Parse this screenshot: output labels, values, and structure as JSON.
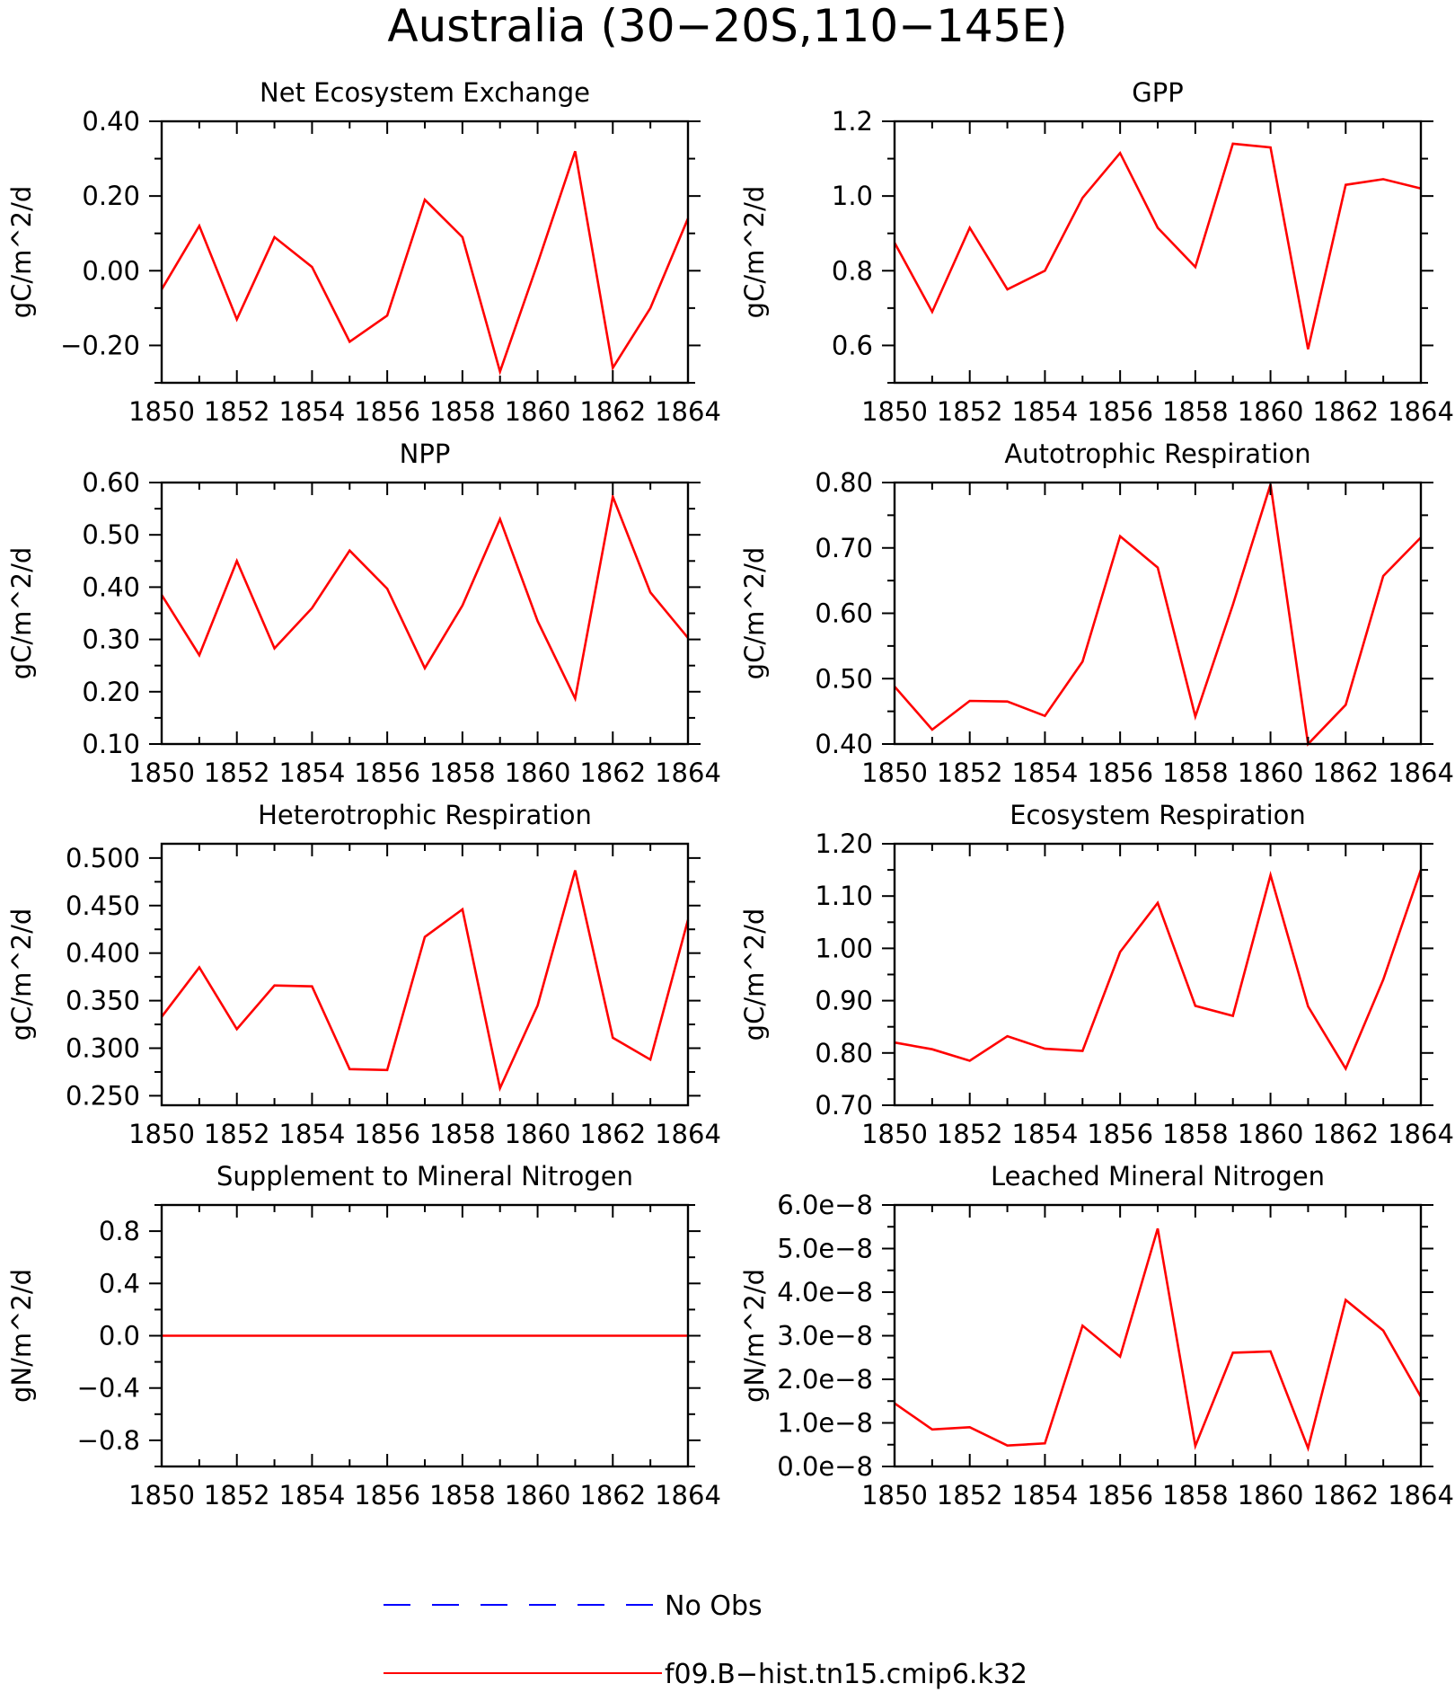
{
  "figure": {
    "title": "Australia (30−20S,110−145E)"
  },
  "colors": {
    "model": "#ff0000",
    "obs": "#0000ff",
    "axes": "#000000"
  },
  "legend": {
    "items": [
      {
        "label": "No Obs",
        "style": "dashed",
        "color": "#0000ff"
      },
      {
        "label": "f09.B−hist.tn15.cmip6.k32",
        "style": "solid",
        "color": "#ff0000"
      }
    ]
  },
  "chart_data": [
    {
      "type": "line",
      "title": "Net Ecosystem Exchange",
      "ylabel": "gC/m^2/d",
      "xlabel": "",
      "xlim": [
        1850,
        1864
      ],
      "ylim": [
        -0.3,
        0.4
      ],
      "xticks": [
        1850,
        1852,
        1854,
        1856,
        1858,
        1860,
        1862,
        1864
      ],
      "yticks": [
        -0.2,
        0.0,
        0.2,
        0.4
      ],
      "ytick_labels": [
        "−0.20",
        "0.00",
        "0.20",
        "0.40"
      ],
      "x": [
        1850,
        1851,
        1852,
        1853,
        1854,
        1855,
        1856,
        1857,
        1858,
        1859,
        1860,
        1861,
        1862,
        1863,
        1864
      ],
      "series": [
        {
          "name": "f09.B−hist.tn15.cmip6.k32",
          "values": [
            -0.05,
            0.12,
            -0.13,
            0.09,
            0.01,
            -0.19,
            -0.12,
            0.19,
            0.09,
            -0.27,
            0.02,
            0.32,
            -0.26,
            -0.1,
            0.14
          ]
        }
      ]
    },
    {
      "type": "line",
      "title": "GPP",
      "ylabel": "gC/m^2/d",
      "xlabel": "",
      "xlim": [
        1850,
        1864
      ],
      "ylim": [
        0.5,
        1.2
      ],
      "xticks": [
        1850,
        1852,
        1854,
        1856,
        1858,
        1860,
        1862,
        1864
      ],
      "yticks": [
        0.6,
        0.8,
        1.0,
        1.2
      ],
      "ytick_labels": [
        "0.6",
        "0.8",
        "1.0",
        "1.2"
      ],
      "x": [
        1850,
        1851,
        1852,
        1853,
        1854,
        1855,
        1856,
        1857,
        1858,
        1859,
        1860,
        1861,
        1862,
        1863,
        1864
      ],
      "series": [
        {
          "name": "f09.B−hist.tn15.cmip6.k32",
          "values": [
            0.875,
            0.69,
            0.915,
            0.75,
            0.8,
            0.995,
            1.115,
            0.915,
            0.81,
            1.14,
            1.13,
            0.59,
            1.03,
            1.045,
            1.02
          ]
        }
      ]
    },
    {
      "type": "line",
      "title": "NPP",
      "ylabel": "gC/m^2/d",
      "xlabel": "",
      "xlim": [
        1850,
        1864
      ],
      "ylim": [
        0.1,
        0.6
      ],
      "xticks": [
        1850,
        1852,
        1854,
        1856,
        1858,
        1860,
        1862,
        1864
      ],
      "yticks": [
        0.1,
        0.2,
        0.3,
        0.4,
        0.5,
        0.6
      ],
      "ytick_labels": [
        "0.10",
        "0.20",
        "0.30",
        "0.40",
        "0.50",
        "0.60"
      ],
      "x": [
        1850,
        1851,
        1852,
        1853,
        1854,
        1855,
        1856,
        1857,
        1858,
        1859,
        1860,
        1861,
        1862,
        1863,
        1864
      ],
      "series": [
        {
          "name": "f09.B−hist.tn15.cmip6.k32",
          "values": [
            0.385,
            0.27,
            0.45,
            0.283,
            0.36,
            0.47,
            0.397,
            0.245,
            0.365,
            0.53,
            0.335,
            0.187,
            0.573,
            0.39,
            0.303
          ]
        }
      ]
    },
    {
      "type": "line",
      "title": "Autotrophic Respiration",
      "ylabel": "gC/m^2/d",
      "xlabel": "",
      "xlim": [
        1850,
        1864
      ],
      "ylim": [
        0.4,
        0.8
      ],
      "xticks": [
        1850,
        1852,
        1854,
        1856,
        1858,
        1860,
        1862,
        1864
      ],
      "yticks": [
        0.4,
        0.5,
        0.6,
        0.7,
        0.8
      ],
      "ytick_labels": [
        "0.40",
        "0.50",
        "0.60",
        "0.70",
        "0.80"
      ],
      "x": [
        1850,
        1851,
        1852,
        1853,
        1854,
        1855,
        1856,
        1857,
        1858,
        1859,
        1860,
        1861,
        1862,
        1863,
        1864
      ],
      "series": [
        {
          "name": "f09.B−hist.tn15.cmip6.k32",
          "values": [
            0.488,
            0.422,
            0.466,
            0.465,
            0.443,
            0.526,
            0.718,
            0.67,
            0.442,
            0.613,
            0.797,
            0.4,
            0.46,
            0.657,
            0.716
          ]
        }
      ]
    },
    {
      "type": "line",
      "title": "Heterotrophic Respiration",
      "ylabel": "gC/m^2/d",
      "xlabel": "",
      "xlim": [
        1850,
        1864
      ],
      "ylim": [
        0.24,
        0.515
      ],
      "xticks": [
        1850,
        1852,
        1854,
        1856,
        1858,
        1860,
        1862,
        1864
      ],
      "yticks": [
        0.25,
        0.3,
        0.35,
        0.4,
        0.45,
        0.5
      ],
      "ytick_labels": [
        "0.250",
        "0.300",
        "0.350",
        "0.400",
        "0.450",
        "0.500"
      ],
      "x": [
        1850,
        1851,
        1852,
        1853,
        1854,
        1855,
        1856,
        1857,
        1858,
        1859,
        1860,
        1861,
        1862,
        1863,
        1864
      ],
      "series": [
        {
          "name": "f09.B−hist.tn15.cmip6.k32",
          "values": [
            0.333,
            0.385,
            0.32,
            0.366,
            0.365,
            0.278,
            0.277,
            0.417,
            0.446,
            0.258,
            0.345,
            0.487,
            0.311,
            0.288,
            0.435
          ]
        }
      ]
    },
    {
      "type": "line",
      "title": "Ecosystem Respiration",
      "ylabel": "gC/m^2/d",
      "xlabel": "",
      "xlim": [
        1850,
        1864
      ],
      "ylim": [
        0.7,
        1.2
      ],
      "xticks": [
        1850,
        1852,
        1854,
        1856,
        1858,
        1860,
        1862,
        1864
      ],
      "yticks": [
        0.7,
        0.8,
        0.9,
        1.0,
        1.1,
        1.2
      ],
      "ytick_labels": [
        "0.70",
        "0.80",
        "0.90",
        "1.00",
        "1.10",
        "1.20"
      ],
      "x": [
        1850,
        1851,
        1852,
        1853,
        1854,
        1855,
        1856,
        1857,
        1858,
        1859,
        1860,
        1861,
        1862,
        1863,
        1864
      ],
      "series": [
        {
          "name": "f09.B−hist.tn15.cmip6.k32",
          "values": [
            0.82,
            0.807,
            0.785,
            0.832,
            0.808,
            0.804,
            0.993,
            1.087,
            0.89,
            0.871,
            1.14,
            0.889,
            0.77,
            0.94,
            1.15
          ]
        }
      ]
    },
    {
      "type": "line",
      "title": "Supplement to Mineral Nitrogen",
      "ylabel": "gN/m^2/d",
      "xlabel": "",
      "xlim": [
        1850,
        1864
      ],
      "ylim": [
        -1.0,
        1.0
      ],
      "xticks": [
        1850,
        1852,
        1854,
        1856,
        1858,
        1860,
        1862,
        1864
      ],
      "yticks": [
        -0.8,
        -0.4,
        0.0,
        0.4,
        0.8
      ],
      "ytick_labels": [
        "−0.8",
        "−0.4",
        "0.0",
        "0.4",
        "0.8"
      ],
      "x": [
        1850,
        1851,
        1852,
        1853,
        1854,
        1855,
        1856,
        1857,
        1858,
        1859,
        1860,
        1861,
        1862,
        1863,
        1864
      ],
      "series": [
        {
          "name": "f09.B−hist.tn15.cmip6.k32",
          "values": [
            0,
            0,
            0,
            0,
            0,
            0,
            0,
            0,
            0,
            0,
            0,
            0,
            0,
            0,
            0
          ]
        }
      ]
    },
    {
      "type": "line",
      "title": "Leached Mineral Nitrogen",
      "ylabel": "gN/m^2/d",
      "xlabel": "",
      "xlim": [
        1850,
        1864
      ],
      "ylim": [
        0.0,
        6e-08
      ],
      "xticks": [
        1850,
        1852,
        1854,
        1856,
        1858,
        1860,
        1862,
        1864
      ],
      "yticks": [
        0.0,
        1e-08,
        2e-08,
        3e-08,
        4e-08,
        5e-08,
        6e-08
      ],
      "ytick_labels": [
        "0.0e−8",
        "1.0e−8",
        "2.0e−8",
        "3.0e−8",
        "4.0e−8",
        "5.0e−8",
        "6.0e−8"
      ],
      "x": [
        1850,
        1851,
        1852,
        1853,
        1854,
        1855,
        1856,
        1857,
        1858,
        1859,
        1860,
        1861,
        1862,
        1863,
        1864
      ],
      "series": [
        {
          "name": "f09.B−hist.tn15.cmip6.k32",
          "values": [
            1.45e-08,
            8.5e-09,
            9e-09,
            4.8e-09,
            5.3e-09,
            3.23e-08,
            2.52e-08,
            5.46e-08,
            4.7e-09,
            2.61e-08,
            2.64e-08,
            4.2e-09,
            3.82e-08,
            3.12e-08,
            1.6e-08
          ]
        }
      ]
    }
  ]
}
